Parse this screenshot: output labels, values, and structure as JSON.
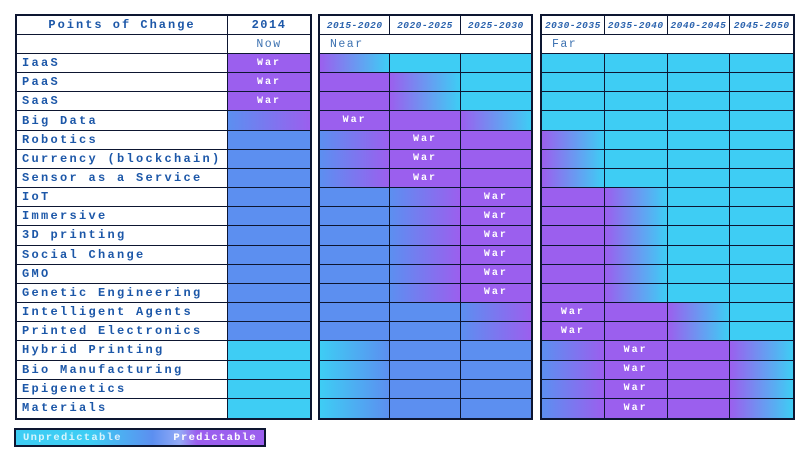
{
  "chart_data": {
    "type": "heatmap",
    "title": "Points of Change",
    "war_label": "War",
    "column_groups": [
      {
        "label": "Now",
        "columns": [
          "2014"
        ]
      },
      {
        "label": "Near",
        "columns": [
          "2015-2020",
          "2020-2025",
          "2025-2030"
        ]
      },
      {
        "label": "Far",
        "columns": [
          "2030-2035",
          "2035-2040",
          "2040-2045",
          "2045-2050"
        ]
      }
    ],
    "cell_code_legend": {
      "C": "cyan solid (unpredictable)",
      "B": "blue solid (mid)",
      "P": "purple solid (predictable)",
      "CB": "gradient cyan to blue",
      "BP": "gradient blue to purple",
      "PC": "gradient purple to cyan",
      "*": "War marker shown in cell"
    },
    "rows": [
      {
        "label": "IaaS",
        "cells": [
          "P*",
          "PC",
          "C",
          "C",
          "C",
          "C",
          "C",
          "C"
        ]
      },
      {
        "label": "PaaS",
        "cells": [
          "P*",
          "P",
          "PC",
          "C",
          "C",
          "C",
          "C",
          "C"
        ]
      },
      {
        "label": "SaaS",
        "cells": [
          "P*",
          "P",
          "PC",
          "C",
          "C",
          "C",
          "C",
          "C"
        ]
      },
      {
        "label": "Big Data",
        "cells": [
          "BP",
          "P*",
          "P",
          "PC",
          "C",
          "C",
          "C",
          "C"
        ]
      },
      {
        "label": "Robotics",
        "cells": [
          "B",
          "BP",
          "P*",
          "P",
          "PC",
          "C",
          "C",
          "C"
        ]
      },
      {
        "label": "Currency (blockchain)",
        "cells": [
          "B",
          "BP",
          "P*",
          "P",
          "PC",
          "C",
          "C",
          "C"
        ]
      },
      {
        "label": "Sensor as a Service",
        "cells": [
          "B",
          "BP",
          "P*",
          "P",
          "PC",
          "C",
          "C",
          "C"
        ]
      },
      {
        "label": "IoT",
        "cells": [
          "B",
          "B",
          "BP",
          "P*",
          "P",
          "PC",
          "C",
          "C"
        ]
      },
      {
        "label": "Immersive",
        "cells": [
          "B",
          "B",
          "BP",
          "P*",
          "P",
          "PC",
          "C",
          "C"
        ]
      },
      {
        "label": "3D printing",
        "cells": [
          "B",
          "B",
          "BP",
          "P*",
          "P",
          "PC",
          "C",
          "C"
        ]
      },
      {
        "label": "Social Change",
        "cells": [
          "B",
          "B",
          "BP",
          "P*",
          "P",
          "PC",
          "C",
          "C"
        ]
      },
      {
        "label": "GMO",
        "cells": [
          "B",
          "B",
          "BP",
          "P*",
          "P",
          "PC",
          "C",
          "C"
        ]
      },
      {
        "label": "Genetic Engineering",
        "cells": [
          "B",
          "B",
          "BP",
          "P*",
          "P",
          "PC",
          "C",
          "C"
        ]
      },
      {
        "label": "Intelligent Agents",
        "cells": [
          "B",
          "B",
          "B",
          "BP",
          "P*",
          "P",
          "PC",
          "C"
        ]
      },
      {
        "label": "Printed Electronics",
        "cells": [
          "B",
          "B",
          "B",
          "BP",
          "P*",
          "P",
          "PC",
          "C"
        ]
      },
      {
        "label": "Hybrid Printing",
        "cells": [
          "C",
          "CB",
          "B",
          "B",
          "BP",
          "P*",
          "P",
          "PC"
        ]
      },
      {
        "label": "Bio Manufacturing",
        "cells": [
          "C",
          "CB",
          "B",
          "B",
          "BP",
          "P*",
          "P",
          "PC"
        ]
      },
      {
        "label": "Epigenetics",
        "cells": [
          "C",
          "CB",
          "B",
          "B",
          "BP",
          "P*",
          "P",
          "PC"
        ]
      },
      {
        "label": "Materials",
        "cells": [
          "C",
          "CB",
          "B",
          "B",
          "BP",
          "P*",
          "P",
          "PC"
        ]
      }
    ],
    "legend": {
      "left_label": "Unpredictable",
      "right_label": "Predictable"
    },
    "colors": {
      "cyan": "#3ecdf4",
      "blue": "#5c8ff0",
      "purple": "#9b5fee",
      "label_text": "#1c57a8",
      "border": "#0d1631"
    }
  }
}
